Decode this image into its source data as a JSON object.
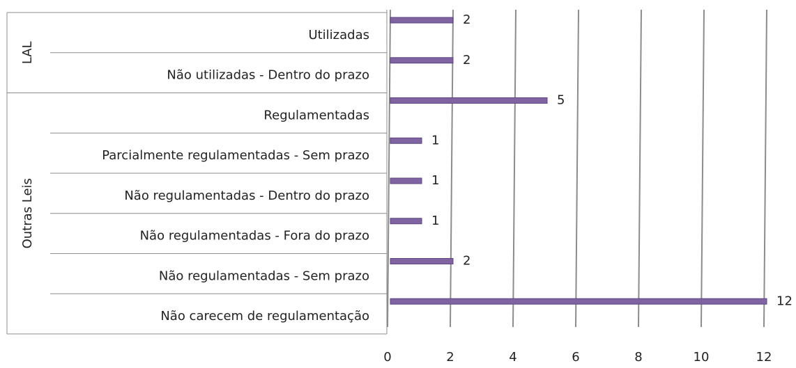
{
  "chart_data": {
    "type": "bar",
    "orientation": "horizontal",
    "groups": [
      {
        "name": "LAL",
        "categories": [
          "Utilizadas",
          "Não utilizadas - Dentro do prazo"
        ],
        "values": [
          2,
          2
        ]
      },
      {
        "name": "Outras Leis",
        "categories": [
          "Regulamentadas",
          "Parcialmente regulamentadas - Sem prazo",
          "Não regulamentadas - Dentro do prazo",
          "Não regulamentadas - Fora do prazo",
          "Não regulamentadas - Sem prazo",
          "Não carecem de regulamentação"
        ],
        "values": [
          5,
          1,
          1,
          1,
          2,
          12
        ]
      }
    ],
    "xlim": [
      0,
      12
    ],
    "xticks": [
      0,
      2,
      4,
      6,
      8,
      10,
      12
    ],
    "grid": true,
    "color": "#8064a2",
    "data_labels": true
  }
}
